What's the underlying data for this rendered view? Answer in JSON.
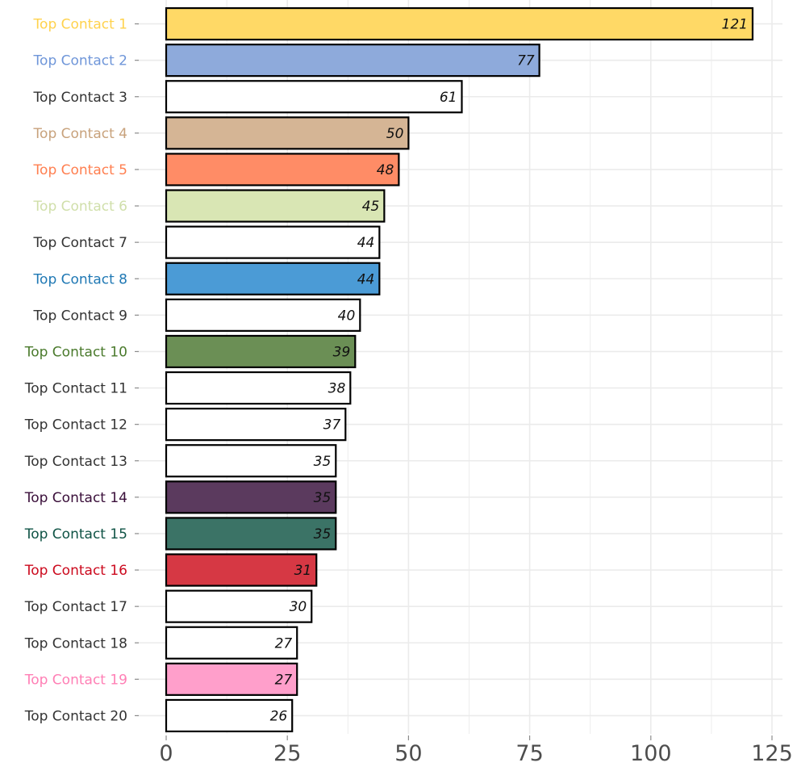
{
  "chart_data": {
    "type": "bar",
    "orientation": "horizontal",
    "title": "",
    "xlabel": "",
    "ylabel": "",
    "categories": [
      "Top Contact 1",
      "Top Contact 2",
      "Top Contact 3",
      "Top Contact 4",
      "Top Contact 5",
      "Top Contact 6",
      "Top Contact 7",
      "Top Contact 8",
      "Top Contact 9",
      "Top Contact 10",
      "Top Contact 11",
      "Top Contact 12",
      "Top Contact 13",
      "Top Contact 14",
      "Top Contact 15",
      "Top Contact 16",
      "Top Contact 17",
      "Top Contact 18",
      "Top Contact 19",
      "Top Contact 20"
    ],
    "values": [
      121,
      77,
      61,
      50,
      48,
      45,
      44,
      44,
      40,
      39,
      38,
      37,
      35,
      35,
      35,
      31,
      30,
      27,
      27,
      26
    ],
    "value_labels": [
      "121",
      "77",
      "61",
      "50",
      "48",
      "45",
      "44",
      "44",
      "40",
      "39",
      "38",
      "37",
      "35",
      "35",
      "35",
      "31",
      "30",
      "27",
      "27",
      "26"
    ],
    "bar_colors": [
      "#ffd966",
      "#8eaadb",
      "#ffffff",
      "#d5b595",
      "#ff8c66",
      "#d9e6b4",
      "#ffffff",
      "#4b9bd6",
      "#ffffff",
      "#6b8f55",
      "#ffffff",
      "#ffffff",
      "#ffffff",
      "#5b3a5e",
      "#3b7366",
      "#d63844",
      "#ffffff",
      "#ffffff",
      "#ff9fcb",
      "#ffffff"
    ],
    "label_colors": [
      "#ffd24d",
      "#6f96d9",
      "#333333",
      "#c8a27c",
      "#ff7f50",
      "#d0dfaa",
      "#333333",
      "#1f78b4",
      "#333333",
      "#4a7a2c",
      "#333333",
      "#333333",
      "#333333",
      "#3a0f3a",
      "#0f5345",
      "#cc0a1e",
      "#333333",
      "#333333",
      "#ff7fb5",
      "#333333"
    ],
    "xlim": [
      0,
      125
    ],
    "x_ticks": [
      "0",
      "25",
      "50",
      "75",
      "100",
      "125"
    ],
    "x_tick_values": [
      0,
      25,
      50,
      75,
      100,
      125
    ],
    "grid": true,
    "legend": false
  }
}
